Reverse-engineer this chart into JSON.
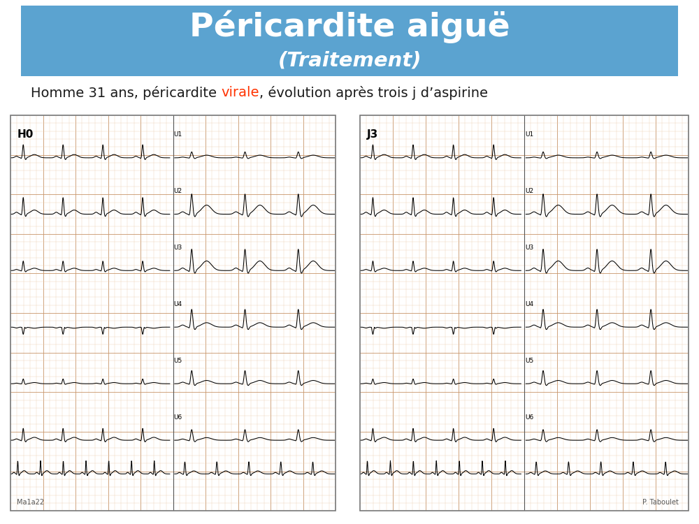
{
  "title_line1": "Péricardite aiguë",
  "title_line2": "(Traitement)",
  "title_bg_color": "#5BA3D0",
  "title_text_color": "#FFFFFF",
  "subtitle_parts": [
    {
      "text": "Homme 31 ans, péricardite ",
      "color": "#1a1a1a"
    },
    {
      "text": "virale",
      "color": "#FF3300"
    },
    {
      "text": ", évolution après trois j d’aspirine",
      "color": "#1a1a1a"
    }
  ],
  "ecg_left_label": "H0",
  "ecg_right_label": "J3",
  "ecg_left_sublabel": "Ma1a22",
  "ecg_right_sublabel": "P. Taboulet",
  "ecg_bg_color_left": "#F2DFC8",
  "ecg_bg_color_right": "#F0D8CC",
  "ecg_grid_major_color": "#C8956A",
  "ecg_grid_minor_color": "#E8C9A8",
  "ecg_border_color": "#999999",
  "background_color": "#FFFFFF",
  "lead_labels": [
    "U1",
    "U2",
    "U3",
    "U4",
    "U5",
    "U6"
  ]
}
